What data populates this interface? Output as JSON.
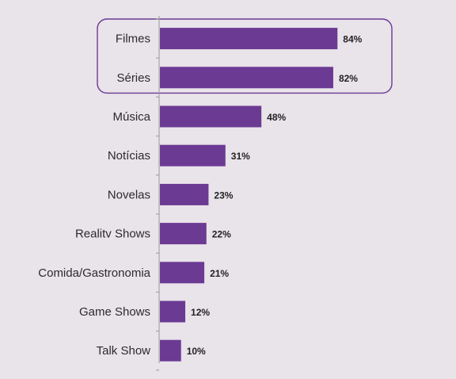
{
  "chart_data": {
    "type": "bar",
    "orientation": "horizontal",
    "categories": [
      "Filmes",
      "Séries",
      "Música",
      "Notícias",
      "Novelas",
      "Realitv Shows",
      "Comida/Gastronomia",
      "Game Shows",
      "Talk Show"
    ],
    "values": [
      84,
      82,
      48,
      31,
      23,
      22,
      21,
      12,
      10
    ],
    "value_labels": [
      "84%",
      "82%",
      "48%",
      "31%",
      "23%",
      "22%",
      "21%",
      "12%",
      "10%"
    ],
    "xlim": [
      0,
      100
    ],
    "highlighted_categories": [
      "Filmes",
      "Séries"
    ],
    "title": "",
    "xlabel": "",
    "ylabel": "",
    "grid": false,
    "legend": "none"
  },
  "colors": {
    "background": "#e9e3ea",
    "bar": "#6b3a93",
    "highlight_border": "#6b3a93",
    "axis": "#999999"
  }
}
